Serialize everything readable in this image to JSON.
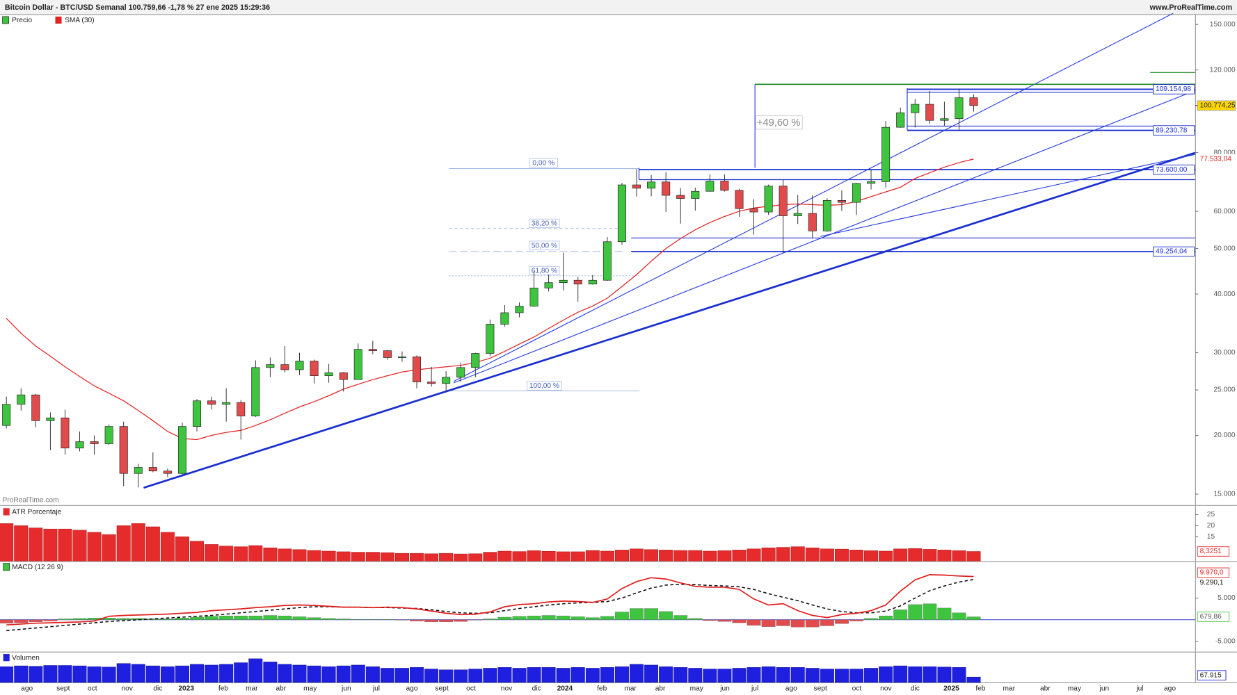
{
  "chart_data": {
    "type": "candlestick",
    "title": "Bitcoin Dollar - BTC/USD Semanal 100.759,66 -1,78 % 27 ene 2025 15:29:36",
    "site": "www.ProRealTime.com",
    "watermark": "ProRealTime.com",
    "log": true,
    "ylim": [
      14270,
      156500
    ],
    "yticks": [
      {
        "value": 150000,
        "label": "150.000"
      },
      {
        "value": 120000,
        "label": "120.000"
      },
      {
        "value": 80000,
        "label": "80.000"
      },
      {
        "value": 60000,
        "label": "60.000"
      },
      {
        "value": 50000,
        "label": "50.000"
      },
      {
        "value": 40000,
        "label": "40.000"
      },
      {
        "value": 30000,
        "label": "30.000"
      },
      {
        "value": 25000,
        "label": "25.000"
      },
      {
        "value": 20000,
        "label": "20.000"
      },
      {
        "value": 15000,
        "label": "15.000"
      }
    ],
    "x_labels": [
      "ago",
      "sept",
      "oct",
      "nov",
      "dic",
      "2023",
      "feb",
      "mar",
      "abr",
      "may",
      "jun",
      "jul",
      "ago",
      "sept",
      "oct",
      "nov",
      "dic",
      "2024",
      "feb",
      "mar",
      "abr",
      "may",
      "jun",
      "jul",
      "ago",
      "sept",
      "oct",
      "nov",
      "dic",
      "2025",
      "feb",
      "mar",
      "abr",
      "may",
      "jun",
      "jul",
      "ago"
    ],
    "series": [
      {
        "name": "Precio",
        "up_color": "#3ec43e",
        "down_color": "#e24b4b",
        "candles": [
          [
            21000,
            24200,
            20700,
            23300
          ],
          [
            23300,
            25200,
            22600,
            24400
          ],
          [
            24400,
            24500,
            20800,
            21500
          ],
          [
            21500,
            22400,
            18600,
            21800
          ],
          [
            21800,
            22700,
            18200,
            18800
          ],
          [
            18800,
            20400,
            18500,
            19400
          ],
          [
            19400,
            20000,
            18200,
            19200
          ],
          [
            19200,
            21100,
            19100,
            20900
          ],
          [
            20900,
            21400,
            15600,
            16600
          ],
          [
            16600,
            17400,
            15500,
            17100
          ],
          [
            17100,
            18400,
            16700,
            16800
          ],
          [
            16800,
            17000,
            16300,
            16600
          ],
          [
            16600,
            21300,
            16500,
            20900
          ],
          [
            20900,
            23900,
            20400,
            23700
          ],
          [
            23700,
            24200,
            22700,
            23300
          ],
          [
            23300,
            25200,
            21400,
            23500
          ],
          [
            23500,
            23800,
            19600,
            22000
          ],
          [
            22000,
            28900,
            21900,
            27900
          ],
          [
            27900,
            29300,
            26600,
            28300
          ],
          [
            28300,
            31000,
            27200,
            27600
          ],
          [
            27600,
            30000,
            26900,
            28800
          ],
          [
            28800,
            29000,
            25800,
            26800
          ],
          [
            26800,
            28400,
            25900,
            27200
          ],
          [
            27200,
            27300,
            24800,
            26300
          ],
          [
            26300,
            31400,
            26300,
            30500
          ],
          [
            30500,
            31800,
            29800,
            30300
          ],
          [
            30300,
            30400,
            29000,
            29300
          ],
          [
            29300,
            30200,
            28700,
            29400
          ],
          [
            29400,
            29600,
            25200,
            26000
          ],
          [
            26000,
            28000,
            25400,
            25800
          ],
          [
            25800,
            27400,
            24900,
            26600
          ],
          [
            26600,
            28600,
            26000,
            27900
          ],
          [
            27900,
            30000,
            26600,
            29900
          ],
          [
            29900,
            35300,
            29500,
            34500
          ],
          [
            34500,
            37900,
            34100,
            36500
          ],
          [
            36500,
            38400,
            35700,
            37700
          ],
          [
            37700,
            44700,
            37600,
            41200
          ],
          [
            41200,
            44000,
            40500,
            42300
          ],
          [
            42300,
            49000,
            40700,
            42800
          ],
          [
            42800,
            43500,
            38500,
            42000
          ],
          [
            42000,
            43900,
            41900,
            42800
          ],
          [
            42800,
            52900,
            42700,
            51700
          ],
          [
            51700,
            69000,
            50900,
            68300
          ],
          [
            68300,
            73800,
            64500,
            67200
          ],
          [
            67200,
            71700,
            64600,
            69300
          ],
          [
            69300,
            72700,
            59800,
            64900
          ],
          [
            64900,
            67200,
            56500,
            63900
          ],
          [
            63900,
            67400,
            60200,
            66200
          ],
          [
            66200,
            71900,
            66100,
            69600
          ],
          [
            69600,
            71900,
            66100,
            66500
          ],
          [
            66500,
            67000,
            58400,
            60800
          ],
          [
            60800,
            63700,
            53500,
            59800
          ],
          [
            59800,
            68400,
            59000,
            67900
          ],
          [
            67900,
            70000,
            49000,
            58700
          ],
          [
            58700,
            65000,
            56400,
            59400
          ],
          [
            59400,
            64900,
            52600,
            54500
          ],
          [
            54500,
            64000,
            54300,
            63300
          ],
          [
            63300,
            66500,
            60100,
            62700
          ],
          [
            62700,
            69000,
            58900,
            68800
          ],
          [
            68800,
            73600,
            66800,
            69400
          ],
          [
            69400,
            93400,
            67400,
            90600
          ],
          [
            90600,
            99800,
            90400,
            97300
          ],
          [
            97300,
            104100,
            90500,
            101400
          ],
          [
            101400,
            108300,
            92200,
            93700
          ],
          [
            93700,
            102700,
            91300,
            94500
          ],
          [
            94500,
            109400,
            89300,
            104700
          ],
          [
            104700,
            106400,
            97800,
            100760
          ]
        ]
      },
      {
        "name": "SMA (30)",
        "color": "#e02424",
        "values": [
          35500,
          33000,
          31000,
          29500,
          28000,
          26700,
          25500,
          24600,
          23700,
          22600,
          21500,
          20400,
          19700,
          19600,
          20000,
          20300,
          20500,
          21000,
          21600,
          22300,
          23000,
          23600,
          24300,
          25100,
          25700,
          26300,
          26800,
          27300,
          27600,
          27800,
          28000,
          28200,
          28600,
          29200,
          30200,
          31300,
          32400,
          33800,
          35200,
          36600,
          37700,
          39200,
          41500,
          44000,
          47000,
          50000,
          52500,
          54800,
          56800,
          58500,
          60000,
          61000,
          61500,
          62000,
          62200,
          62000,
          61800,
          62000,
          63000,
          64500,
          66000,
          67500,
          70500,
          72500,
          74500,
          76200,
          77533.04
        ],
        "last_label": "77.533,04"
      }
    ],
    "last_price": {
      "value": 100774.25,
      "label": "100.774,25"
    },
    "levels": {
      "values": [
        109154.98,
        89230.78,
        73600,
        49254.04
      ],
      "value_labels": [
        "109.154,98",
        "89.230,78",
        "73.600,00",
        "49.254,04"
      ]
    },
    "change_label": "+49,60 %",
    "fib_labels": [
      "0,00 %",
      "38,20 %",
      "50,00 %",
      "61,80 %",
      "100,00 %"
    ],
    "atr": {
      "title": "ATR Porcentaje",
      "color": "#e52b2b",
      "ylim": [
        4,
        28.6
      ],
      "yticks": [
        15,
        20,
        25
      ],
      "values": [
        21,
        20,
        19,
        18.5,
        18.5,
        18,
        17,
        16,
        20,
        21,
        19.5,
        17,
        15,
        13,
        11.5,
        10.8,
        10.5,
        11,
        10,
        9.5,
        9.2,
        8.8,
        8.5,
        8.2,
        8,
        8,
        7.8,
        7.5,
        7.5,
        7.3,
        7.5,
        7.2,
        7.3,
        8,
        8.5,
        8.3,
        8.7,
        8.4,
        8.2,
        8.2,
        8.8,
        8.5,
        9,
        9.5,
        9.2,
        9,
        8.8,
        8.8,
        8.5,
        8.7,
        9,
        9.5,
        10,
        10.2,
        10.5,
        10,
        9.5,
        9.4,
        9,
        8.7,
        8.5,
        9.5,
        9.7,
        9.3,
        9,
        8.7,
        8.3251
      ],
      "last_label": "8,3251"
    },
    "macd": {
      "title": "MACD (12 26 9)",
      "ylim": [
        -7364,
        13364
      ],
      "yticks": [
        {
          "value": 5000,
          "label": "5.000"
        },
        {
          "value": -5000,
          "label": "-5.000"
        }
      ],
      "macd_color": "#e01e1e",
      "signal_color": "#111111",
      "up_color": "#3ec43e",
      "down_color": "#e24b4b",
      "macd_values": [
        -1200,
        -1000,
        -800,
        -700,
        -600,
        -500,
        -300,
        800,
        1000,
        1100,
        1200,
        1300,
        1500,
        1700,
        2100,
        2300,
        2500,
        2800,
        3000,
        3300,
        3400,
        3300,
        3100,
        2900,
        2900,
        2800,
        2900,
        2800,
        2500,
        2000,
        1500,
        1200,
        1300,
        1800,
        3000,
        3500,
        3700,
        4100,
        4300,
        4200,
        4000,
        4800,
        7200,
        8800,
        9700,
        9400,
        8500,
        7700,
        7500,
        7500,
        7000,
        4800,
        3400,
        3700,
        2100,
        1000,
        500,
        1200,
        1500,
        2100,
        3400,
        6600,
        9200,
        10400,
        10300,
        10100,
        9970
      ],
      "signal_values": [
        -2500,
        -2200,
        -1900,
        -1600,
        -1300,
        -1000,
        -700,
        -400,
        -200,
        0,
        200,
        400,
        600,
        800,
        1000,
        1300,
        1600,
        1900,
        2200,
        2500,
        2800,
        3000,
        3000,
        2900,
        2900,
        2800,
        2800,
        2700,
        2600,
        2300,
        1900,
        1600,
        1500,
        1600,
        2100,
        2600,
        3000,
        3400,
        3700,
        3900,
        4000,
        4200,
        5000,
        6200,
        7300,
        8000,
        8200,
        8100,
        7900,
        7800,
        7600,
        7000,
        6000,
        5200,
        4400,
        3400,
        2500,
        1900,
        1600,
        1600,
        2000,
        3200,
        5000,
        6700,
        7800,
        8700,
        9290.1
      ],
      "hist_values": [
        -800,
        -700,
        -500,
        -300,
        200,
        300,
        400,
        400,
        300,
        300,
        200,
        200,
        400,
        600,
        800,
        900,
        900,
        900,
        1000,
        900,
        700,
        500,
        300,
        200,
        100,
        100,
        100,
        -100,
        -300,
        -500,
        -500,
        -400,
        -100,
        200,
        600,
        800,
        900,
        1000,
        900,
        700,
        500,
        800,
        1800,
        2600,
        2600,
        1900,
        1000,
        300,
        -200,
        -400,
        -700,
        -1300,
        -1600,
        -1400,
        -1700,
        -1700,
        -1400,
        -900,
        -300,
        300,
        900,
        2300,
        3500,
        3700,
        2700,
        1600,
        679.86
      ],
      "macd_last_label": "9.970,0",
      "signal_last_label": "9.290,1",
      "hist_last_label": "679,86"
    },
    "volume": {
      "title": "Volumen",
      "color": "#1f1fe0",
      "ylim": [
        0,
        380000
      ],
      "values": [
        200000,
        210000,
        205000,
        215000,
        215000,
        210000,
        200000,
        195000,
        240000,
        230000,
        210000,
        200000,
        210000,
        230000,
        220000,
        230000,
        250000,
        300000,
        260000,
        230000,
        220000,
        210000,
        200000,
        210000,
        220000,
        200000,
        180000,
        180000,
        190000,
        170000,
        160000,
        160000,
        170000,
        180000,
        190000,
        180000,
        190000,
        190000,
        180000,
        190000,
        180000,
        190000,
        200000,
        230000,
        220000,
        200000,
        190000,
        180000,
        170000,
        170000,
        180000,
        190000,
        200000,
        190000,
        190000,
        180000,
        170000,
        170000,
        170000,
        180000,
        200000,
        210000,
        200000,
        200000,
        195000,
        190000,
        67915
      ],
      "last_label": "67.915"
    }
  }
}
